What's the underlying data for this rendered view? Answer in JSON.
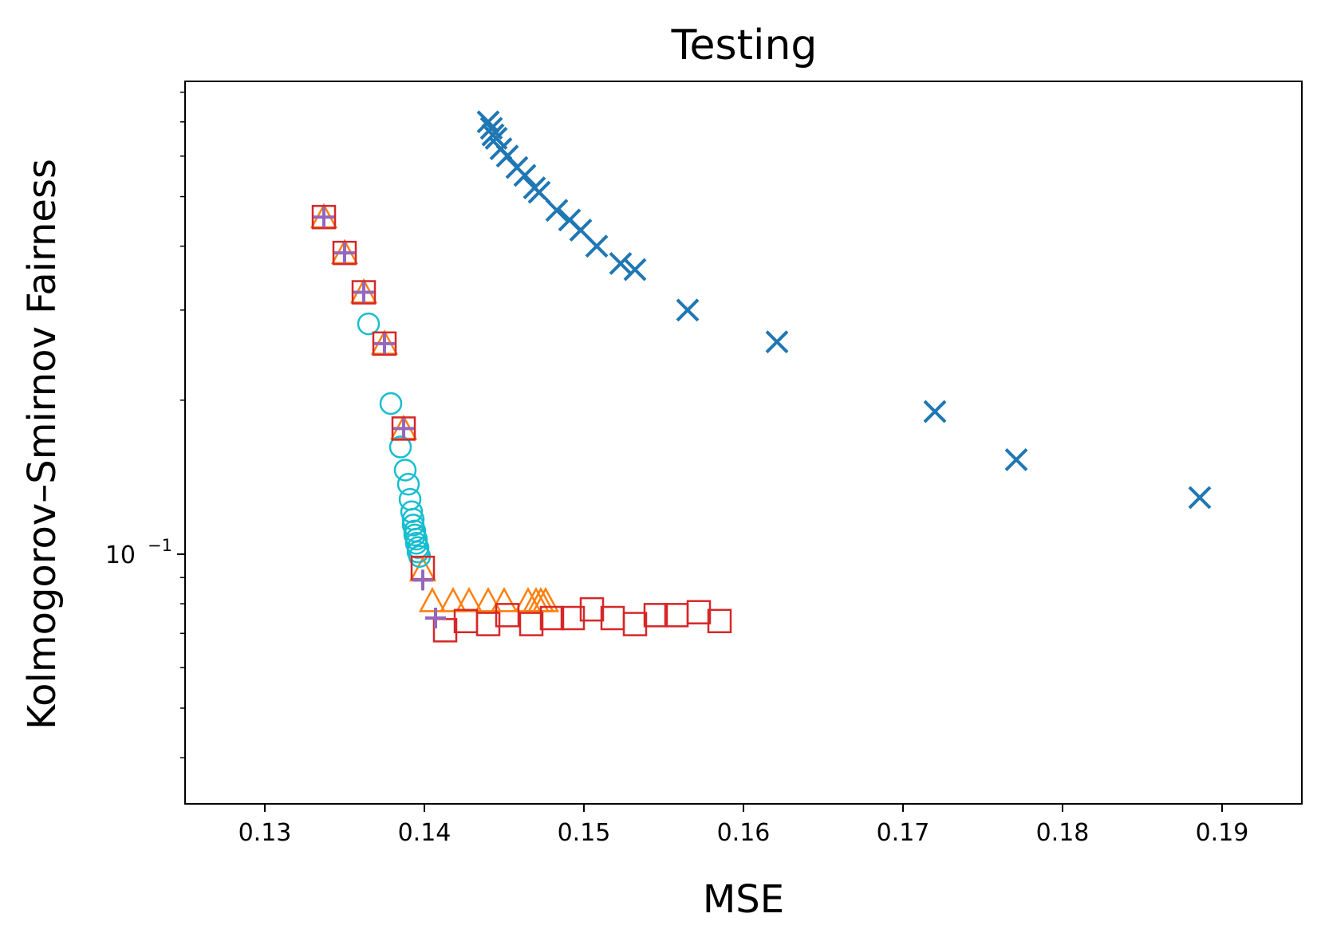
{
  "chart_data": {
    "type": "scatter",
    "title": "Testing",
    "xlabel": "MSE",
    "ylabel": "Kolmogorov–Smirnov Fairness",
    "xlim": [
      0.125,
      0.195
    ],
    "ylim": [
      0.0325,
      0.84
    ],
    "yscale": "log",
    "xticks": [
      0.13,
      0.14,
      0.15,
      0.16,
      0.17,
      0.18,
      0.19
    ],
    "xtick_labels": [
      "0.13",
      "0.14",
      "0.15",
      "0.16",
      "0.17",
      "0.18",
      "0.19"
    ],
    "ytick_major": [
      0.1
    ],
    "ytick_major_label": "10",
    "ytick_major_exponent": "−1",
    "ytick_minor": [
      0.04,
      0.05,
      0.06,
      0.07,
      0.08,
      0.09,
      0.2,
      0.3,
      0.4,
      0.5,
      0.6,
      0.7,
      0.8
    ],
    "legend": "none",
    "series": [
      {
        "name": "series-x",
        "marker": "x",
        "color": "#1f77b4",
        "points": [
          [
            0.144,
            0.7
          ],
          [
            0.1442,
            0.68
          ],
          [
            0.1443,
            0.66
          ],
          [
            0.1445,
            0.65
          ],
          [
            0.1448,
            0.62
          ],
          [
            0.1452,
            0.6
          ],
          [
            0.1458,
            0.57
          ],
          [
            0.1463,
            0.55
          ],
          [
            0.1469,
            0.52
          ],
          [
            0.1472,
            0.51
          ],
          [
            0.1483,
            0.47
          ],
          [
            0.1491,
            0.45
          ],
          [
            0.1498,
            0.43
          ],
          [
            0.1508,
            0.4
          ],
          [
            0.1523,
            0.37
          ],
          [
            0.1532,
            0.36
          ],
          [
            0.1565,
            0.3
          ],
          [
            0.1621,
            0.26
          ],
          [
            0.172,
            0.19
          ],
          [
            0.1771,
            0.153
          ],
          [
            0.1886,
            0.129
          ]
        ]
      },
      {
        "name": "series-circle",
        "marker": "circle",
        "color": "#17becf",
        "points": [
          [
            0.1365,
            0.282
          ],
          [
            0.1379,
            0.197
          ],
          [
            0.1385,
            0.162
          ],
          [
            0.1388,
            0.146
          ],
          [
            0.139,
            0.137
          ],
          [
            0.1391,
            0.128
          ],
          [
            0.1392,
            0.121
          ],
          [
            0.1393,
            0.117
          ],
          [
            0.1393,
            0.114
          ],
          [
            0.1394,
            0.111
          ],
          [
            0.1394,
            0.109
          ],
          [
            0.1395,
            0.107
          ],
          [
            0.1395,
            0.105
          ],
          [
            0.1396,
            0.103
          ],
          [
            0.1396,
            0.101
          ],
          [
            0.1397,
            0.099
          ]
        ]
      },
      {
        "name": "series-triangle",
        "marker": "triangle",
        "color": "#ff7f0e",
        "points": [
          [
            0.1337,
            0.456
          ],
          [
            0.135,
            0.388
          ],
          [
            0.1362,
            0.325
          ],
          [
            0.1375,
            0.258
          ],
          [
            0.1387,
            0.176
          ],
          [
            0.1399,
            0.093
          ],
          [
            0.1405,
            0.081
          ],
          [
            0.1418,
            0.081
          ],
          [
            0.1428,
            0.081
          ],
          [
            0.144,
            0.081
          ],
          [
            0.145,
            0.081
          ],
          [
            0.1465,
            0.081
          ],
          [
            0.147,
            0.081
          ],
          [
            0.1473,
            0.081
          ],
          [
            0.1476,
            0.081
          ]
        ]
      },
      {
        "name": "series-square",
        "marker": "square",
        "color": "#d62728",
        "points": [
          [
            0.1337,
            0.456
          ],
          [
            0.135,
            0.388
          ],
          [
            0.1362,
            0.325
          ],
          [
            0.1375,
            0.258
          ],
          [
            0.1387,
            0.176
          ],
          [
            0.1399,
            0.094
          ],
          [
            0.1413,
            0.071
          ],
          [
            0.1426,
            0.074
          ],
          [
            0.144,
            0.073
          ],
          [
            0.1452,
            0.076
          ],
          [
            0.1467,
            0.073
          ],
          [
            0.148,
            0.075
          ],
          [
            0.1493,
            0.075
          ],
          [
            0.1505,
            0.078
          ],
          [
            0.1518,
            0.075
          ],
          [
            0.1532,
            0.073
          ],
          [
            0.1545,
            0.076
          ],
          [
            0.1558,
            0.076
          ],
          [
            0.1572,
            0.077
          ],
          [
            0.1585,
            0.074
          ]
        ]
      },
      {
        "name": "series-plus",
        "marker": "plus",
        "color": "#9467bd",
        "points": [
          [
            0.1337,
            0.456
          ],
          [
            0.135,
            0.388
          ],
          [
            0.1362,
            0.325
          ],
          [
            0.1375,
            0.258
          ],
          [
            0.1387,
            0.176
          ],
          [
            0.1399,
            0.089
          ],
          [
            0.1407,
            0.075
          ]
        ]
      }
    ]
  }
}
